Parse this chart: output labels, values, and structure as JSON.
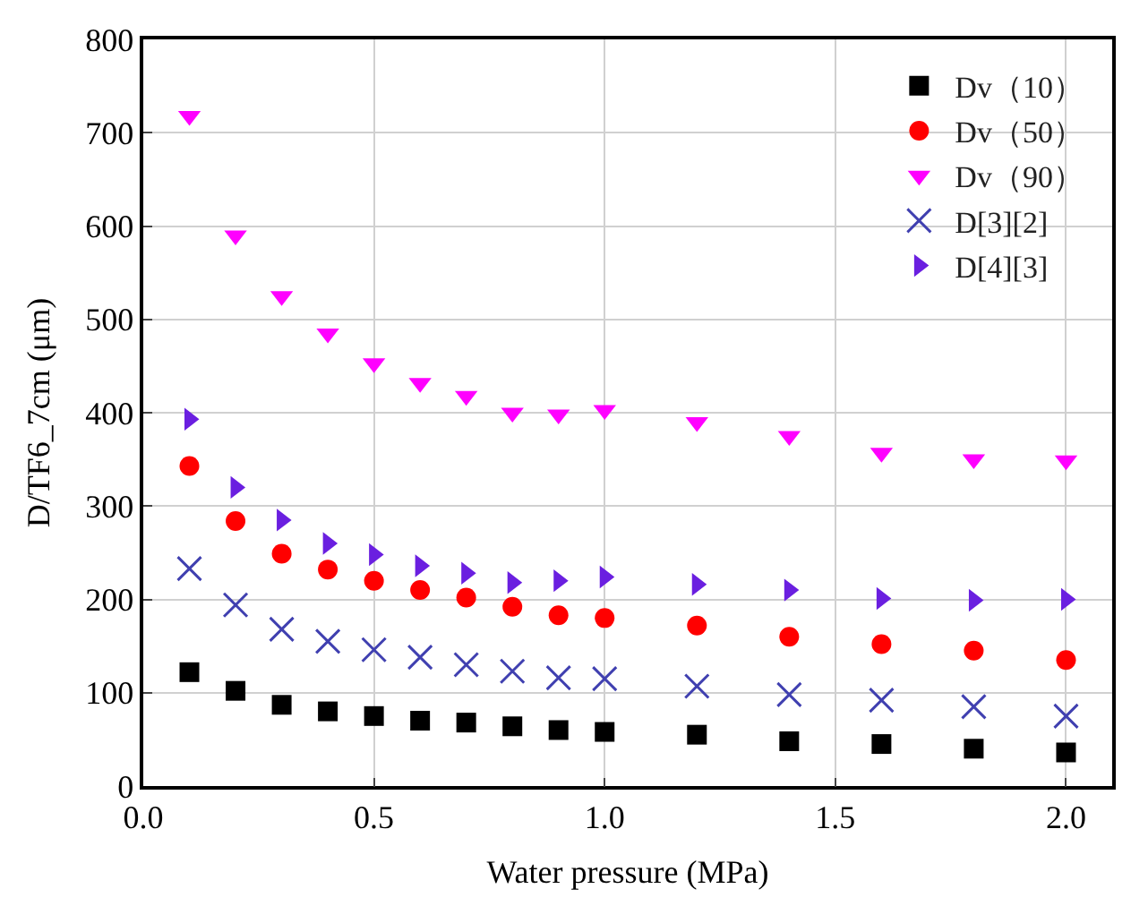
{
  "chart_data": {
    "type": "scatter",
    "xlabel": "Water pressure (MPa)",
    "ylabel": "D/TF6_7cm (μm)",
    "x": [
      0.1,
      0.2,
      0.3,
      0.4,
      0.5,
      0.6,
      0.7,
      0.8,
      0.9,
      1.0,
      1.2,
      1.4,
      1.6,
      1.8,
      2.0
    ],
    "xlim": [
      0.0,
      2.1
    ],
    "xticks": [
      {
        "value": 0,
        "label": "0.0"
      },
      0.5,
      {
        "value": 1,
        "label": "1.0"
      },
      1.5,
      {
        "value": 2,
        "label": "2.0"
      }
    ],
    "ylim": [
      0,
      800
    ],
    "yticks": [
      0,
      100,
      200,
      300,
      400,
      500,
      600,
      700,
      800
    ],
    "grid": true,
    "legend": "top right",
    "series": [
      {
        "name": "Dv（10）",
        "color": "#000000",
        "marker": "square",
        "values": [
          122,
          102,
          87,
          80,
          75,
          70,
          68,
          64,
          60,
          58,
          55,
          48,
          45,
          40,
          36
        ]
      },
      {
        "name": "Dv（50）",
        "color": "#ff0000",
        "marker": "circle",
        "values": [
          343,
          284,
          249,
          232,
          220,
          210,
          202,
          192,
          183,
          180,
          172,
          160,
          152,
          145,
          135
        ]
      },
      {
        "name": "Dv（90）",
        "color": "#ff00ff",
        "marker": "triangle",
        "values": [
          718,
          590,
          525,
          485,
          453,
          432,
          418,
          400,
          398,
          403,
          390,
          375,
          357,
          350,
          349
        ]
      },
      {
        "name": "D[3][2]",
        "color": "#4040b0",
        "marker": "cross",
        "values": [
          233,
          194,
          168,
          155,
          146,
          138,
          130,
          123,
          116,
          115,
          107,
          98,
          92,
          85,
          75
        ]
      },
      {
        "name": "D[4][3]",
        "color": "#6a1fe0",
        "marker": "triangle",
        "values": [
          393,
          320,
          285,
          260,
          248,
          236,
          228,
          218,
          220,
          224,
          216,
          210,
          201,
          199,
          200
        ]
      }
    ]
  }
}
